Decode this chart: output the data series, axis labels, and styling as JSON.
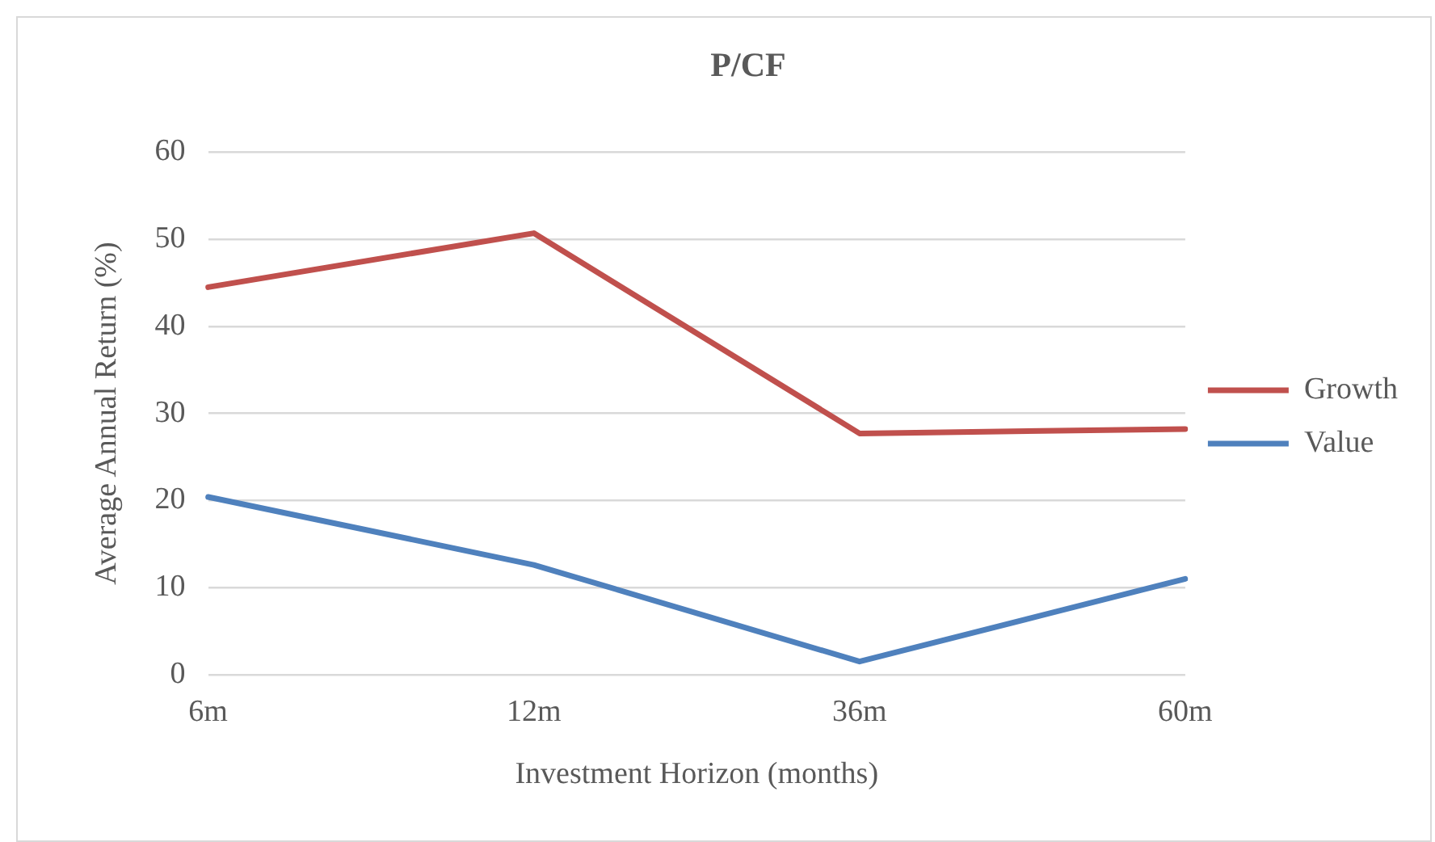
{
  "chart_data": {
    "type": "line",
    "title": "P/CF",
    "xlabel": "Investment Horizon (months)",
    "ylabel": "Average Annual Return (%)",
    "categories": [
      "6m",
      "12m",
      "36m",
      "60m"
    ],
    "series": [
      {
        "name": "Growth",
        "color": "#c0504d",
        "values": [
          44.5,
          50.7,
          27.7,
          28.2
        ]
      },
      {
        "name": "Value",
        "color": "#4f81bd",
        "values": [
          20.4,
          12.6,
          1.5,
          11.0
        ]
      }
    ],
    "ylim": [
      0,
      60
    ],
    "yticks": [
      0,
      10,
      20,
      30,
      40,
      50,
      60
    ],
    "grid": "y",
    "legend": "right",
    "marker": "none",
    "line_style": "solid"
  }
}
